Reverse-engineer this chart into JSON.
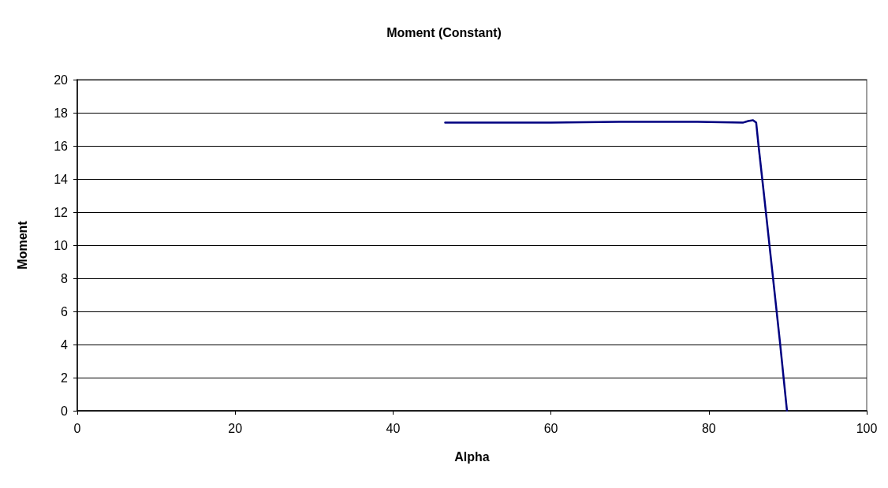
{
  "chart_data": {
    "type": "line",
    "title": "Moment (Constant)",
    "xlabel": "Alpha",
    "ylabel": "Moment",
    "x": [
      46.6,
      55,
      60,
      68.6,
      75,
      78.6,
      84.3,
      85,
      85.6,
      86,
      86.3,
      87,
      88,
      89,
      89.9
    ],
    "series": [
      {
        "color": "#000080",
        "values": [
          17.4,
          17.4,
          17.4,
          17.45,
          17.45,
          17.45,
          17.4,
          17.5,
          17.55,
          17.4,
          16,
          13,
          8.6,
          4.2,
          0
        ]
      }
    ],
    "xlim": [
      0,
      100
    ],
    "xticks": [
      0,
      20,
      40,
      60,
      80,
      100
    ],
    "ylim": [
      0,
      20
    ],
    "yticks": [
      0,
      2,
      4,
      6,
      8,
      10,
      12,
      14,
      16,
      18,
      20
    ],
    "grid": "y",
    "marker": "none",
    "line_style": "solid"
  }
}
